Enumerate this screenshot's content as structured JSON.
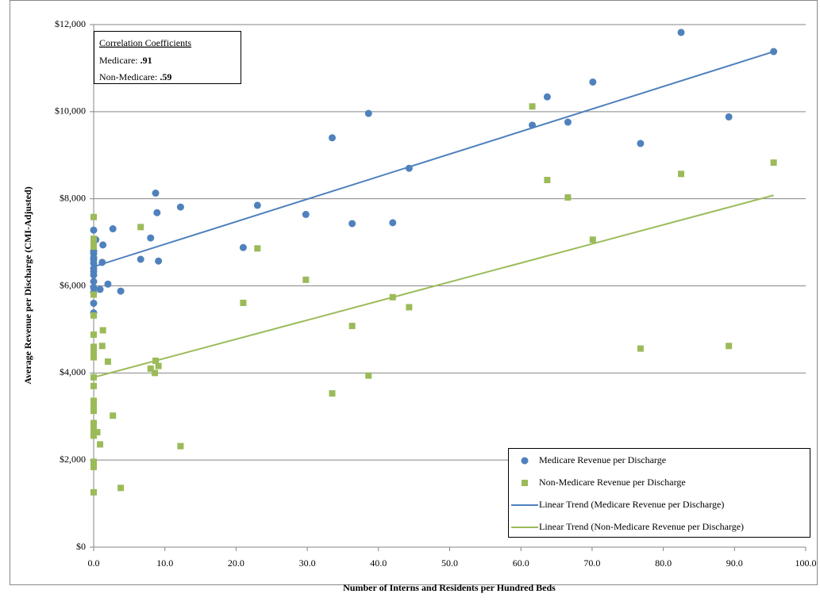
{
  "chart_data": {
    "type": "scatter",
    "x_label": "Number of Interns and Residents per Hundred Beds",
    "y_label": "Average Revenue per Discharge (CMI-Adjusted)",
    "xlim": [
      0,
      100
    ],
    "ylim": [
      0,
      12000
    ],
    "xticks": [
      {
        "value": 0,
        "label": "0.0"
      },
      {
        "value": 10,
        "label": "10.0"
      },
      {
        "value": 20,
        "label": "20.0"
      },
      {
        "value": 30,
        "label": "30.0"
      },
      {
        "value": 40,
        "label": "40.0"
      },
      {
        "value": 50,
        "label": "50.0"
      },
      {
        "value": 60,
        "label": "60.0"
      },
      {
        "value": 70,
        "label": "70.0"
      },
      {
        "value": 80,
        "label": "80.0"
      },
      {
        "value": 90,
        "label": "90.0"
      },
      {
        "value": 100,
        "label": "100.0"
      }
    ],
    "yticks": [
      {
        "value": 0,
        "label": "$0"
      },
      {
        "value": 2000,
        "label": "$2,000"
      },
      {
        "value": 4000,
        "label": "$4,000"
      },
      {
        "value": 6000,
        "label": "$6,000"
      },
      {
        "value": 8000,
        "label": "$8,000"
      },
      {
        "value": 10000,
        "label": "$10,000"
      },
      {
        "value": 12000,
        "label": "$12,000"
      }
    ],
    "grid": true,
    "legend": "lower right",
    "annotation": {
      "title": "Correlation Coefficients",
      "lines": [
        {
          "label": "Medicare:",
          "value": ".91"
        },
        {
          "label": "Non-Medicare:",
          "value": ".59"
        }
      ]
    },
    "series": [
      {
        "name": "Medicare Revenue per Discharge",
        "type": "scatter",
        "marker": "circle",
        "color": "#4f81bd",
        "x": [
          95.5,
          82.5,
          89.2,
          76.8,
          70.1,
          66.6,
          63.7,
          61.6,
          44.3,
          42.0,
          38.6,
          36.3,
          33.5,
          29.8,
          23.0,
          21.0,
          12.2,
          9.1,
          8.7,
          8.9,
          8.0,
          6.6,
          3.8,
          2.7,
          2.0,
          1.3,
          1.2,
          0.9,
          0.3,
          0,
          0,
          0,
          0,
          0,
          0,
          0,
          0,
          0,
          0,
          0,
          0,
          0,
          0
        ],
        "values": [
          11380,
          11820,
          9880,
          9270,
          10680,
          9760,
          10340,
          9690,
          8700,
          7450,
          9960,
          7430,
          9400,
          7640,
          7850,
          6880,
          7810,
          6570,
          8130,
          7680,
          7100,
          6610,
          5880,
          7310,
          6040,
          6940,
          6540,
          5920,
          7060,
          7280,
          6800,
          6740,
          6650,
          6600,
          6520,
          6400,
          6330,
          6250,
          6100,
          5960,
          5850,
          5600,
          5380
        ]
      },
      {
        "name": "Non-Medicare Revenue per Discharge",
        "type": "scatter",
        "marker": "square",
        "color": "#9bbb59",
        "x": [
          95.5,
          82.5,
          89.2,
          76.8,
          70.1,
          66.6,
          63.7,
          61.6,
          44.3,
          42.0,
          38.6,
          36.3,
          33.5,
          29.8,
          23.0,
          21.0,
          12.2,
          9.1,
          8.7,
          8.6,
          8.0,
          6.6,
          3.8,
          2.7,
          2.0,
          1.3,
          1.2,
          0.9,
          0.5,
          0,
          0,
          0,
          0,
          0,
          0,
          0,
          0,
          0,
          0,
          0,
          0,
          0,
          0,
          0,
          0,
          0,
          0,
          0,
          0,
          0,
          0
        ],
        "values": [
          8830,
          8570,
          4620,
          4560,
          7060,
          8030,
          8430,
          10120,
          5510,
          5740,
          3940,
          5080,
          3530,
          6140,
          6860,
          5610,
          2320,
          4160,
          4280,
          4000,
          4100,
          7350,
          1360,
          3020,
          4260,
          4980,
          4620,
          2360,
          2640,
          7580,
          7080,
          7000,
          6900,
          5800,
          5320,
          4880,
          4600,
          4480,
          4360,
          3900,
          3700,
          3360,
          3260,
          3130,
          2850,
          2780,
          2660,
          2560,
          1960,
          1840,
          1260
        ]
      },
      {
        "name": "Linear Trend (Medicare Revenue per Discharge)",
        "type": "line",
        "color": "#4f81bd",
        "x": [
          0,
          95.5
        ],
        "values": [
          6440,
          11380
        ]
      },
      {
        "name": "Linear Trend (Non-Medicare Revenue per Discharge)",
        "type": "line",
        "color": "#9bbb59",
        "x": [
          0,
          95.5
        ],
        "values": [
          3900,
          8080
        ]
      }
    ]
  }
}
